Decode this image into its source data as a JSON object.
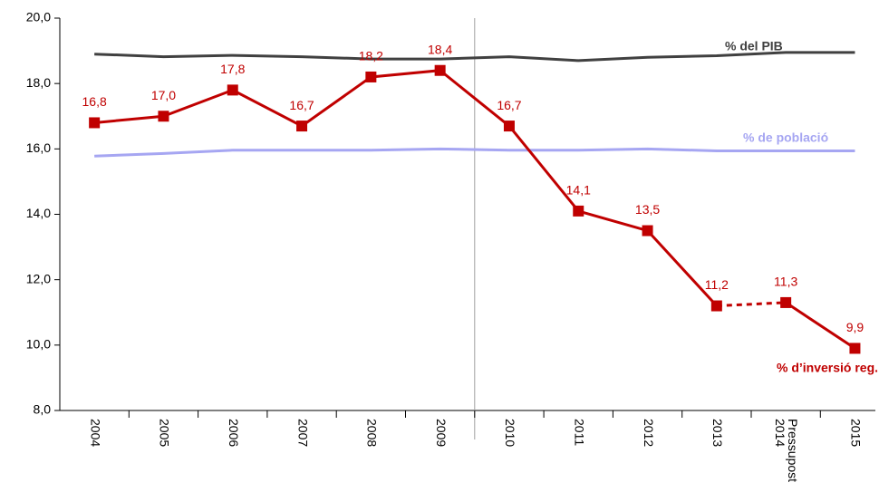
{
  "chart_data": {
    "type": "line",
    "categories": [
      "2004",
      "2005",
      "2006",
      "2007",
      "2008",
      "2009",
      "2010",
      "2011",
      "2012",
      "2013",
      "Pressupost 2014",
      "2015"
    ],
    "ylim": [
      8,
      20
    ],
    "yticks": [
      {
        "value": 8,
        "label": "8,0"
      },
      {
        "value": 10,
        "label": "10,0"
      },
      {
        "value": 12,
        "label": "12,0"
      },
      {
        "value": 14,
        "label": "14,0"
      },
      {
        "value": 16,
        "label": "16,0"
      },
      {
        "value": 18,
        "label": "18,0"
      },
      {
        "value": 20,
        "label": "20,0"
      }
    ],
    "series": [
      {
        "name": "% del PIB",
        "color": "#404040",
        "values": [
          18.9,
          18.82,
          18.86,
          18.82,
          18.75,
          18.75,
          18.82,
          18.7,
          18.8,
          18.85,
          18.95,
          18.95
        ]
      },
      {
        "name": "% de població",
        "color": "#a6a6f2",
        "values": [
          15.78,
          15.86,
          15.96,
          15.96,
          15.96,
          16.0,
          15.96,
          15.96,
          16.0,
          15.94,
          15.94,
          15.94
        ]
      },
      {
        "name": "% d’inversió reg.",
        "color": "#c00000",
        "markers": true,
        "dashed_segments": [
          [
            9,
            10
          ]
        ],
        "values": [
          16.8,
          17.0,
          17.8,
          16.7,
          18.2,
          18.4,
          16.7,
          14.1,
          13.5,
          11.2,
          11.3,
          9.9
        ],
        "value_labels": [
          "16,8",
          "17,0",
          "17,8",
          "16,7",
          "18,2",
          "18,4",
          "16,7",
          "14,1",
          "13,5",
          "11,2",
          "11,3",
          "9,9"
        ]
      }
    ]
  }
}
